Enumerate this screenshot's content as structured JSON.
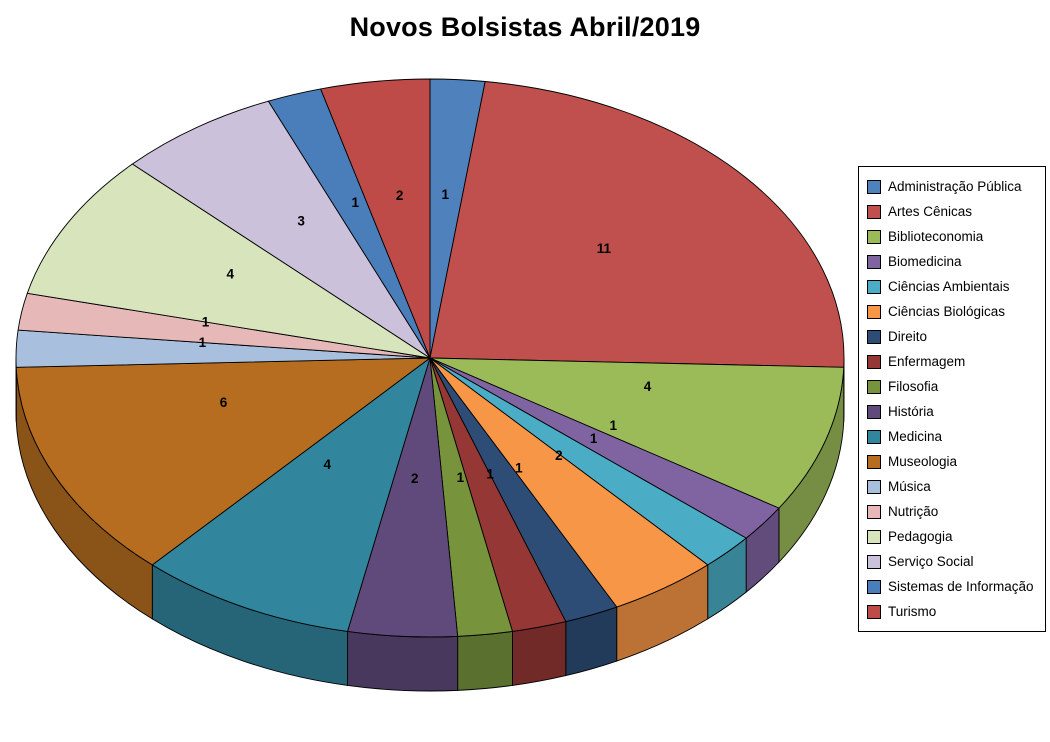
{
  "title": "Novos Bolsistas Abril/2019",
  "chart_data": {
    "type": "pie",
    "style": "3d-pie",
    "title": "Novos Bolsistas Abril/2019",
    "legend_position": "right",
    "label_type": "value",
    "start_angle_deg": 0,
    "direction": "clockwise",
    "categories": [
      "Administração Pública",
      "Artes Cênicas",
      "Biblioteconomia",
      "Biomedicina",
      "Ciências Ambientais",
      "Ciências Biológicas",
      "Direito",
      "Enfermagem",
      "Filosofia",
      "História",
      "Medicina",
      "Museologia",
      "Música",
      "Nutrição",
      "Pedagogia",
      "Serviço Social",
      "Sistemas de Informação",
      "Turismo"
    ],
    "values": [
      1,
      11,
      4,
      1,
      1,
      2,
      1,
      1,
      1,
      2,
      4,
      6,
      1,
      1,
      4,
      3,
      1,
      2
    ],
    "colors": [
      "#4F81BD",
      "#C0504D",
      "#9BBB59",
      "#8064A2",
      "#4BACC6",
      "#F79646",
      "#2D4D76",
      "#953735",
      "#77933C",
      "#604A7B",
      "#31859C",
      "#B66D1F",
      "#A8BFDD",
      "#E6B9B8",
      "#D7E4BC",
      "#CCC1DA",
      "#4A7EBB",
      "#BE4B48"
    ]
  }
}
